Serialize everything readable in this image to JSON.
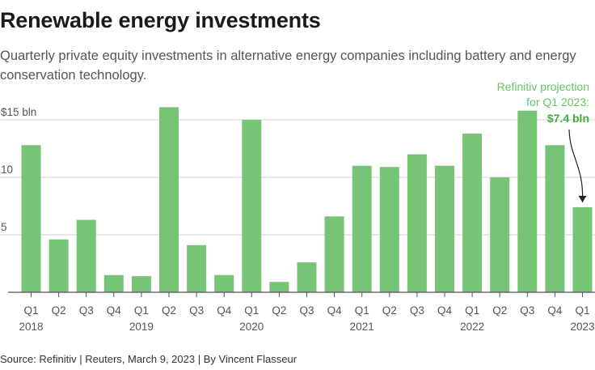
{
  "title": "Renewable energy investments",
  "subtitle": "Quarterly private equity investments in alternative energy companies including battery and energy conservation technology.",
  "source": "Source: Refinitiv | Reuters, March 9, 2023 | By Vincent Flasseur",
  "colors": {
    "bar": "#77c477",
    "grid": "#d0d0d0",
    "baseline": "#555555",
    "annotation": "#66c266",
    "annotation_bold": "#3fae3f"
  },
  "chart_data": {
    "type": "bar",
    "title": "Renewable energy investments",
    "ylabel": "$ bln",
    "ylim": [
      0,
      15
    ],
    "yticks": [
      {
        "value": 15,
        "label": "$15 bln"
      },
      {
        "value": 10,
        "label": "10"
      },
      {
        "value": 5,
        "label": "5"
      }
    ],
    "categories": [
      "Q1 2018",
      "Q2 2018",
      "Q3 2018",
      "Q4 2018",
      "Q1 2019",
      "Q2 2019",
      "Q3 2019",
      "Q4 2019",
      "Q1 2020",
      "Q2 2020",
      "Q3 2020",
      "Q4 2020",
      "Q1 2021",
      "Q2 2021",
      "Q3 2021",
      "Q4 2021",
      "Q1 2022",
      "Q2 2022",
      "Q3 2022",
      "Q4 2022",
      "Q1 2023"
    ],
    "quarter_labels": [
      "Q1",
      "Q2",
      "Q3",
      "Q4",
      "Q1",
      "Q2",
      "Q3",
      "Q4",
      "Q1",
      "Q2",
      "Q3",
      "Q4",
      "Q1",
      "Q2",
      "Q3",
      "Q4",
      "Q1",
      "Q2",
      "Q3",
      "Q4",
      "Q1"
    ],
    "year_labels": [
      {
        "index": 0,
        "label": "2018"
      },
      {
        "index": 4,
        "label": "2019"
      },
      {
        "index": 8,
        "label": "2020"
      },
      {
        "index": 12,
        "label": "2021"
      },
      {
        "index": 16,
        "label": "2022"
      },
      {
        "index": 20,
        "label": "2023"
      }
    ],
    "values": [
      12.8,
      4.6,
      6.3,
      1.5,
      1.4,
      16.1,
      4.1,
      1.5,
      15.0,
      0.9,
      2.6,
      6.6,
      11.0,
      10.9,
      12.0,
      11.0,
      13.8,
      10.0,
      15.8,
      12.8,
      7.4
    ],
    "annotation": {
      "lines": [
        "Refinitiv projection",
        "for Q1 2023:"
      ],
      "value_label": "$7.4 bln",
      "target_index": 20
    }
  }
}
